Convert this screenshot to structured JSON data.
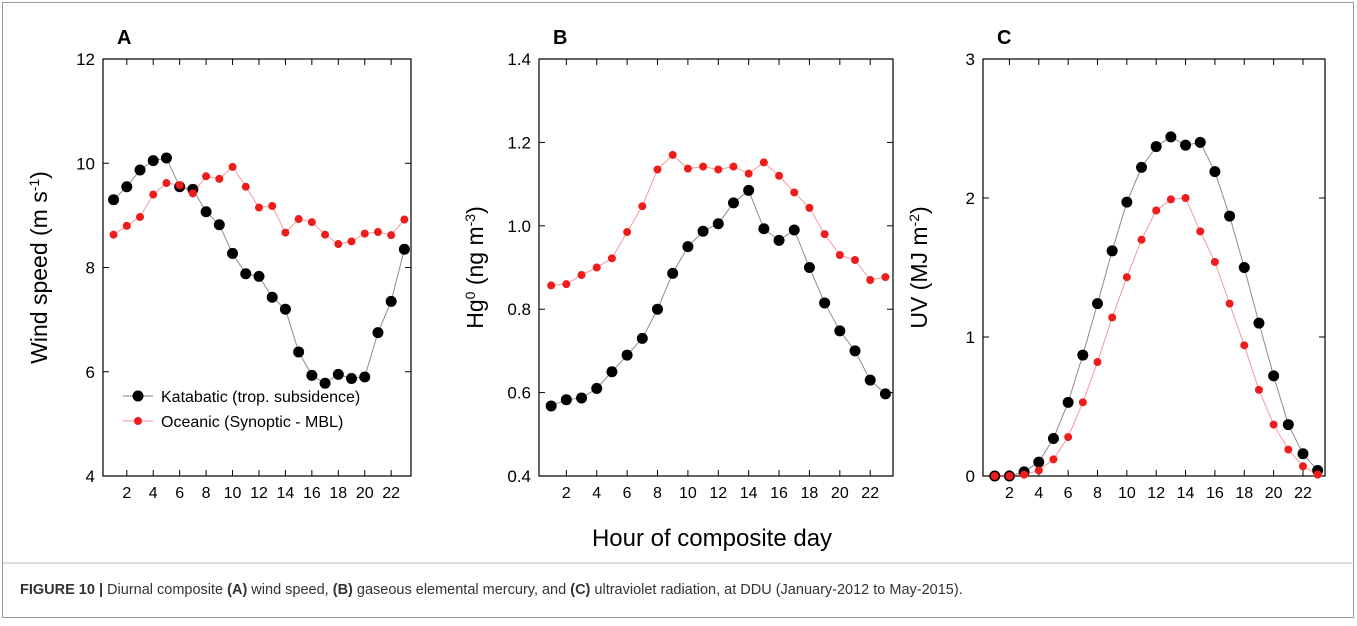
{
  "chart_data": [
    {
      "type": "scatter-line",
      "panel": "A",
      "ylabel": [
        {
          "text": "Wind speed (m s"
        },
        {
          "text": "-1",
          "sup": true
        },
        {
          "text": ")"
        }
      ],
      "x": [
        1,
        2,
        3,
        4,
        5,
        6,
        7,
        8,
        9,
        10,
        11,
        12,
        13,
        14,
        15,
        16,
        17,
        18,
        19,
        20,
        21,
        22,
        23
      ],
      "xlim": [
        0.2,
        23.5
      ],
      "xticks": [
        2,
        4,
        6,
        8,
        10,
        12,
        14,
        16,
        18,
        20,
        22
      ],
      "ylim": [
        4,
        12
      ],
      "yticks": [
        4,
        6,
        8,
        10,
        12
      ],
      "grid": false,
      "legend": "lower left",
      "series": [
        {
          "name": "Katabatic (trop. subsidence)",
          "color": "#000000",
          "values": [
            9.3,
            9.55,
            9.87,
            10.05,
            10.1,
            9.55,
            9.5,
            9.07,
            8.82,
            8.27,
            7.88,
            7.83,
            7.43,
            7.2,
            6.38,
            5.93,
            5.78,
            5.95,
            5.87,
            5.9,
            6.75,
            7.35,
            8.35
          ]
        },
        {
          "name": "Oceanic (Synoptic - MBL)",
          "color": "#ee1c1c",
          "values": [
            8.63,
            8.8,
            8.97,
            9.4,
            9.62,
            9.58,
            9.42,
            9.75,
            9.7,
            9.93,
            9.55,
            9.15,
            9.18,
            8.67,
            8.93,
            8.87,
            8.63,
            8.45,
            8.5,
            8.65,
            8.68,
            8.62,
            8.92
          ]
        }
      ]
    },
    {
      "type": "scatter-line",
      "panel": "B",
      "ylabel": [
        {
          "text": "Hg"
        },
        {
          "text": "0",
          "sup": true
        },
        {
          "text": " (ng m"
        },
        {
          "text": "-3",
          "sup": true
        },
        {
          "text": ")"
        }
      ],
      "xlabel": "Hour of composite day",
      "x": [
        1,
        2,
        3,
        4,
        5,
        6,
        7,
        8,
        9,
        10,
        11,
        12,
        13,
        14,
        15,
        16,
        17,
        18,
        19,
        20,
        21,
        22,
        23
      ],
      "xlim": [
        0.2,
        23.5
      ],
      "xticks": [
        2,
        4,
        6,
        8,
        10,
        12,
        14,
        16,
        18,
        20,
        22
      ],
      "ylim": [
        0.4,
        1.4
      ],
      "yticks": [
        0.4,
        0.6,
        0.8,
        {
          "value": 1,
          "label": "1.0"
        },
        1.2,
        1.4
      ],
      "grid": false,
      "series": [
        {
          "color": "#000000",
          "values": [
            0.568,
            0.583,
            0.587,
            0.61,
            0.65,
            0.69,
            0.73,
            0.8,
            0.886,
            0.95,
            0.987,
            1.005,
            1.055,
            1.085,
            0.993,
            0.965,
            0.99,
            0.9,
            0.815,
            0.748,
            0.7,
            0.63,
            0.597
          ]
        },
        {
          "color": "#ee1c1c",
          "values": [
            0.857,
            0.86,
            0.882,
            0.9,
            0.922,
            0.985,
            1.047,
            1.135,
            1.17,
            1.137,
            1.142,
            1.135,
            1.142,
            1.125,
            1.152,
            1.12,
            1.08,
            1.043,
            0.98,
            0.93,
            0.918,
            0.87,
            0.877
          ]
        }
      ]
    },
    {
      "type": "scatter-line",
      "panel": "C",
      "ylabel": [
        {
          "text": "UV (MJ m"
        },
        {
          "text": "-2",
          "sup": true
        },
        {
          "text": ")"
        }
      ],
      "x": [
        1,
        2,
        3,
        4,
        5,
        6,
        7,
        8,
        9,
        10,
        11,
        12,
        13,
        14,
        15,
        16,
        17,
        18,
        19,
        20,
        21,
        22,
        23
      ],
      "xlim": [
        0.2,
        23.5
      ],
      "xticks": [
        2,
        4,
        6,
        8,
        10,
        12,
        14,
        16,
        18,
        20,
        22
      ],
      "ylim": [
        0,
        3
      ],
      "yticks": [
        0,
        1,
        2,
        3
      ],
      "grid": false,
      "series": [
        {
          "color": "#000000",
          "values": [
            0,
            0,
            0.03,
            0.1,
            0.27,
            0.53,
            0.87,
            1.24,
            1.62,
            1.97,
            2.22,
            2.37,
            2.44,
            2.38,
            2.4,
            2.19,
            1.87,
            1.5,
            1.1,
            0.72,
            0.37,
            0.16,
            0.04
          ]
        },
        {
          "color": "#ee1c1c",
          "values": [
            0,
            0,
            0.01,
            0.04,
            0.12,
            0.28,
            0.53,
            0.82,
            1.14,
            1.43,
            1.7,
            1.91,
            1.99,
            2.0,
            1.76,
            1.54,
            1.24,
            0.94,
            0.62,
            0.37,
            0.19,
            0.07,
            0.01
          ]
        }
      ]
    }
  ],
  "caption": [
    {
      "text": "FIGURE 10 |",
      "bold": true
    },
    {
      "text": " Diurnal composite "
    },
    {
      "text": "(A)",
      "bold": true
    },
    {
      "text": " wind speed, "
    },
    {
      "text": "(B)",
      "bold": true
    },
    {
      "text": " gaseous elemental mercury, and "
    },
    {
      "text": "(C)",
      "bold": true
    },
    {
      "text": " ultraviolet radiation, at DDU (January-2012 to May-2015)."
    }
  ]
}
